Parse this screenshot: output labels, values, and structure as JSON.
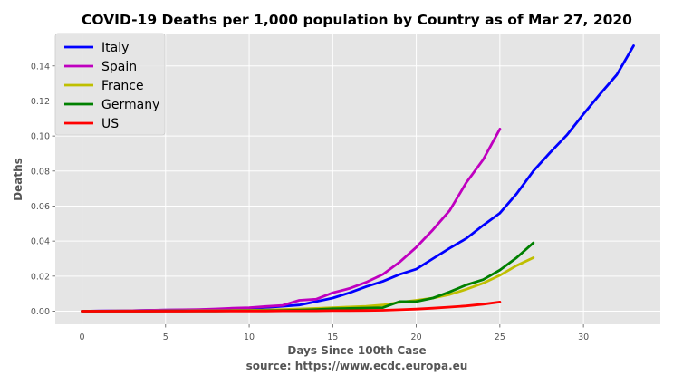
{
  "chart_data": {
    "type": "line",
    "title": "COVID-19 Deaths per 1,000 population by Country as of Mar 27, 2020",
    "xlabel": "Days Since 100th Case",
    "xlabel2": "source: https://www.ecdc.europa.eu",
    "ylabel": "Deaths",
    "xlim": [
      -1.6,
      34.6
    ],
    "ylim": [
      -0.0075,
      0.1585
    ],
    "xticks": [
      0,
      5,
      10,
      15,
      20,
      25,
      30
    ],
    "yticks": [
      0.0,
      0.02,
      0.04,
      0.06,
      0.08,
      0.1,
      0.12,
      0.14
    ],
    "ytick_labels": [
      "0.00",
      "0.02",
      "0.04",
      "0.06",
      "0.08",
      "0.10",
      "0.12",
      "0.14"
    ],
    "grid": true,
    "legend_position": "top-left",
    "series": [
      {
        "name": "Italy",
        "color": "#0000ff",
        "x": [
          0,
          1,
          2,
          3,
          4,
          5,
          6,
          7,
          8,
          9,
          10,
          11,
          12,
          13,
          14,
          15,
          16,
          17,
          18,
          19,
          20,
          21,
          22,
          23,
          24,
          25,
          26,
          27,
          28,
          29,
          30,
          31,
          32,
          33
        ],
        "y": [
          0.0,
          0.0001,
          0.0002,
          0.0003,
          0.0005,
          0.0006,
          0.0007,
          0.0008,
          0.001,
          0.0013,
          0.0016,
          0.0021,
          0.0028,
          0.0035,
          0.0055,
          0.0075,
          0.0105,
          0.014,
          0.017,
          0.021,
          0.024,
          0.03,
          0.036,
          0.0415,
          0.049,
          0.056,
          0.067,
          0.08,
          0.0905,
          0.1005,
          0.1125,
          0.124,
          0.135,
          0.1515
        ]
      },
      {
        "name": "Spain",
        "color": "#bf00bf",
        "x": [
          0,
          1,
          2,
          3,
          4,
          5,
          6,
          7,
          8,
          9,
          10,
          11,
          12,
          13,
          14,
          15,
          16,
          17,
          18,
          19,
          20,
          21,
          22,
          23,
          24,
          25
        ],
        "y": [
          0.0,
          0.0001,
          0.0002,
          0.0003,
          0.0005,
          0.0007,
          0.0008,
          0.001,
          0.0013,
          0.0017,
          0.002,
          0.0027,
          0.0033,
          0.0062,
          0.0068,
          0.0105,
          0.013,
          0.0165,
          0.021,
          0.028,
          0.0365,
          0.0465,
          0.0575,
          0.0735,
          0.0865,
          0.104
        ]
      },
      {
        "name": "France",
        "color": "#bfbf00",
        "x": [
          0,
          1,
          2,
          3,
          4,
          5,
          6,
          7,
          8,
          9,
          10,
          11,
          12,
          13,
          14,
          15,
          16,
          17,
          18,
          19,
          20,
          21,
          22,
          23,
          24,
          25,
          26,
          27
        ],
        "y": [
          0.0,
          0.0,
          0.0001,
          0.0001,
          0.0001,
          0.0002,
          0.0002,
          0.0003,
          0.0003,
          0.0004,
          0.0005,
          0.0007,
          0.001,
          0.0013,
          0.0016,
          0.002,
          0.0024,
          0.0028,
          0.0035,
          0.005,
          0.0062,
          0.0075,
          0.0095,
          0.0125,
          0.016,
          0.0205,
          0.026,
          0.0305
        ]
      },
      {
        "name": "Germany",
        "color": "#008000",
        "x": [
          0,
          1,
          2,
          3,
          4,
          5,
          6,
          7,
          8,
          9,
          10,
          11,
          12,
          13,
          14,
          15,
          16,
          17,
          18,
          19,
          20,
          21,
          22,
          23,
          24,
          25,
          26,
          27
        ],
        "y": [
          0.0,
          0.0,
          0.0,
          0.0,
          0.0,
          0.0001,
          0.0001,
          0.0001,
          0.0001,
          0.0002,
          0.0002,
          0.0003,
          0.0004,
          0.0006,
          0.001,
          0.0014,
          0.0016,
          0.0018,
          0.002,
          0.0055,
          0.0055,
          0.0075,
          0.011,
          0.015,
          0.018,
          0.0235,
          0.0305,
          0.039
        ]
      },
      {
        "name": "US",
        "color": "#ff0000",
        "x": [
          0,
          1,
          2,
          3,
          4,
          5,
          6,
          7,
          8,
          9,
          10,
          11,
          12,
          13,
          14,
          15,
          16,
          17,
          18,
          19,
          20,
          21,
          22,
          23,
          24,
          25
        ],
        "y": [
          0.0,
          0.0,
          0.0,
          0.0,
          0.0,
          0.0,
          0.0,
          0.0001,
          0.0001,
          0.0001,
          0.0001,
          0.0001,
          0.0002,
          0.0002,
          0.0002,
          0.0003,
          0.0003,
          0.0004,
          0.0005,
          0.0008,
          0.0012,
          0.0017,
          0.0023,
          0.003,
          0.004,
          0.0052
        ]
      }
    ]
  }
}
